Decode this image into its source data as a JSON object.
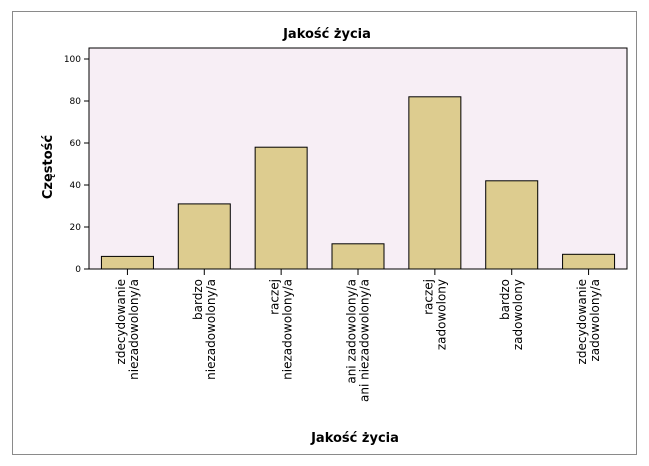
{
  "chart_data": {
    "type": "bar",
    "title": "Jakość życia",
    "xlabel": "Jakość życia",
    "ylabel": "Częstość",
    "ylim": [
      0,
      100
    ],
    "yticks": [
      0,
      20,
      40,
      60,
      80,
      100
    ],
    "categories": [
      [
        "zdecydowanie",
        "niezadowolony/a"
      ],
      [
        "bardzo",
        "niezadowolony/a"
      ],
      [
        "raczej",
        "niezadowolony/a"
      ],
      [
        "ani zadowolony/a",
        "ani niezadowolony/a"
      ],
      [
        "raczej",
        "zadowolony"
      ],
      [
        "bardzo",
        "zadowolony"
      ],
      [
        "zdecydowanie",
        "zadowolony/a"
      ]
    ],
    "values": [
      6,
      31,
      58,
      12,
      82,
      42,
      7
    ],
    "colors": {
      "plot_background": "#f7eef5",
      "bar_fill": "#ddcc8f",
      "bar_stroke": "#000000"
    }
  }
}
